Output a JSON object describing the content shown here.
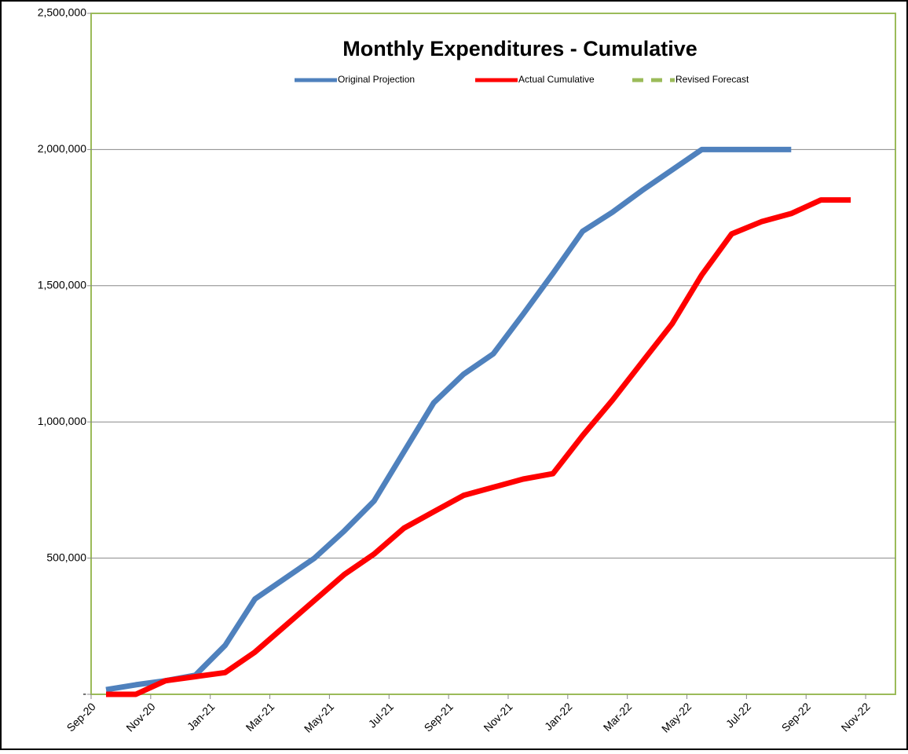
{
  "chart_data": {
    "type": "line",
    "title": "Monthly Expenditures - Cumulative",
    "categories": [
      "Sep-20",
      null,
      "Nov-20",
      null,
      "Jan-21",
      null,
      "Mar-21",
      null,
      "May-21",
      null,
      "Jul-21",
      null,
      "Sep-21",
      null,
      "Nov-21",
      null,
      "Jan-22",
      null,
      "Mar-22",
      null,
      "May-22",
      null,
      "Jul-22",
      null,
      "Sep-22",
      null,
      "Nov-22"
    ],
    "series": [
      {
        "name": "Original Projection",
        "color": "#4f81bd",
        "values": [
          17000,
          35000,
          50000,
          70000,
          180000,
          350000,
          425000,
          500000,
          600000,
          710000,
          890000,
          1070000,
          1175000,
          1250000,
          1395000,
          1545000,
          1700000,
          1770000,
          1850000,
          1925000,
          2000000,
          2000000,
          2000000,
          2000000,
          null,
          null,
          null
        ]
      },
      {
        "name": "Actual Cumulative",
        "color": "#ff0000",
        "values": [
          0,
          0,
          50000,
          65000,
          80000,
          155000,
          250000,
          345000,
          440000,
          515000,
          610000,
          670000,
          730000,
          760000,
          790000,
          810000,
          950000,
          1080000,
          1220000,
          1360000,
          1540000,
          1690000,
          1735000,
          1765000,
          1815000,
          1815000,
          null
        ]
      },
      {
        "name": "Revised Forecast",
        "color": "#9bbb59",
        "dashed": true,
        "values": [
          null,
          null,
          null,
          null,
          null,
          null,
          null,
          null,
          null,
          null,
          null,
          null,
          null,
          null,
          null,
          null,
          null,
          null,
          null,
          null,
          null,
          null,
          null,
          null,
          null,
          null,
          null
        ]
      }
    ],
    "ylim": [
      0,
      2500000
    ],
    "yticks": [
      {
        "value": 0,
        "label": "-"
      },
      {
        "value": 500000,
        "label": "500,000"
      },
      {
        "value": 1000000,
        "label": "1,000,000"
      },
      {
        "value": 1500000,
        "label": "1,500,000"
      },
      {
        "value": 2000000,
        "label": "2,000,000"
      },
      {
        "value": 2500000,
        "label": "2,500,000"
      }
    ],
    "grid": true
  }
}
